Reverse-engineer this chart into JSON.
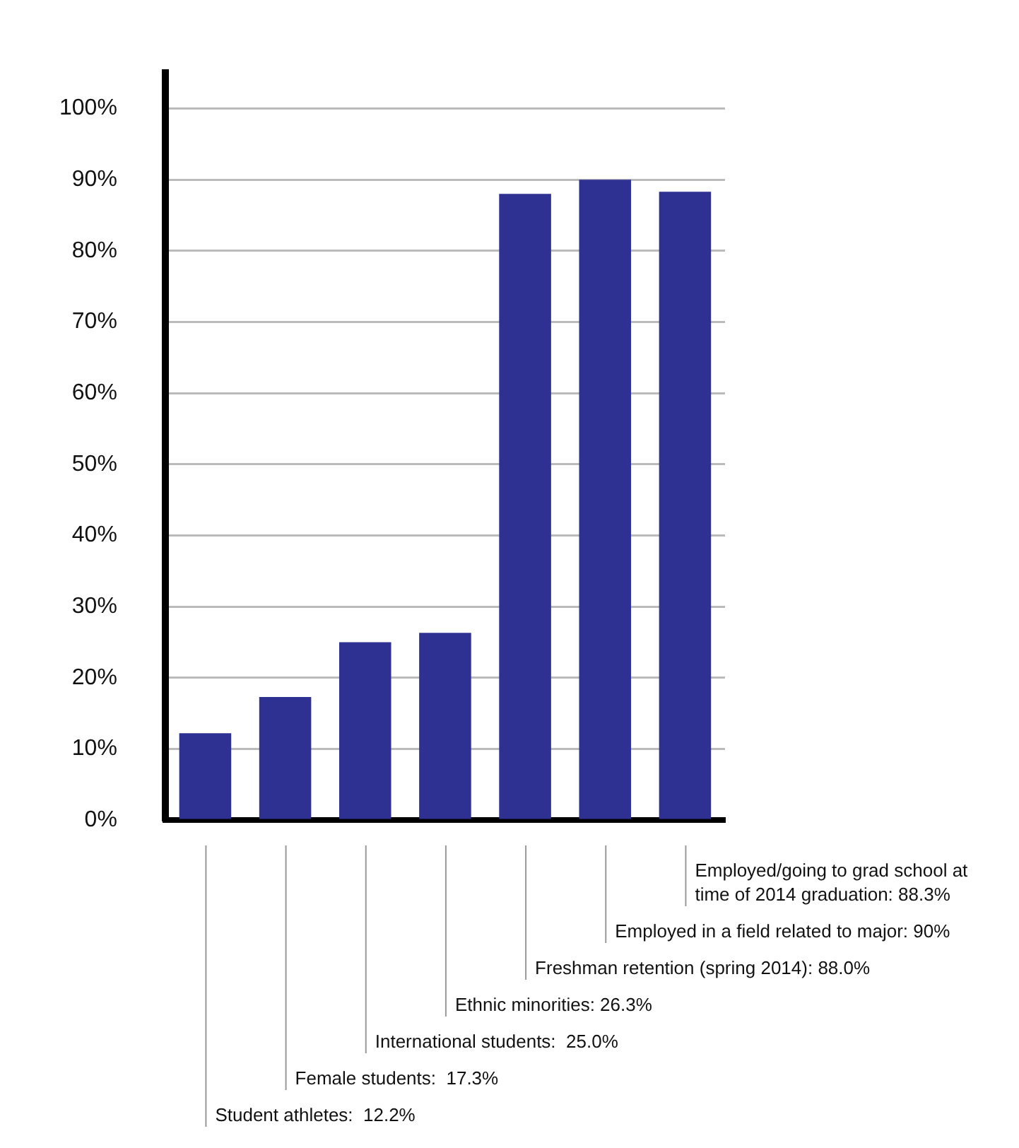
{
  "chart_data": {
    "type": "bar",
    "categories": [
      null,
      null,
      null,
      null,
      null,
      null,
      null
    ],
    "annotations": [
      "Student athletes:  12.2%",
      "Female students:  17.3%",
      "International students:  25.0%",
      "Ethnic minorities: 26.3%",
      "Freshman retention (spring 2014): 88.0%",
      "Employed in a field related to major: 90%",
      "Employed/going to grad school at time of 2014 graduation: 88.3%"
    ],
    "values": [
      12.2,
      17.3,
      25.0,
      26.3,
      88.0,
      90,
      88.3
    ],
    "color": "#2e3192",
    "ylim": [
      0,
      105
    ],
    "yticks": [
      {
        "value": 0,
        "label": "0%"
      },
      {
        "value": 10,
        "label": "10%"
      },
      {
        "value": 20,
        "label": "20%"
      },
      {
        "value": 30,
        "label": "30%"
      },
      {
        "value": 40,
        "label": "40%"
      },
      {
        "value": 50,
        "label": "50%"
      },
      {
        "value": 60,
        "label": "60%"
      },
      {
        "value": 70,
        "label": "70%"
      },
      {
        "value": 80,
        "label": "80%"
      },
      {
        "value": 90,
        "label": "90%"
      },
      {
        "value": 100,
        "label": "100%"
      }
    ],
    "grid": "y",
    "legend": false
  }
}
